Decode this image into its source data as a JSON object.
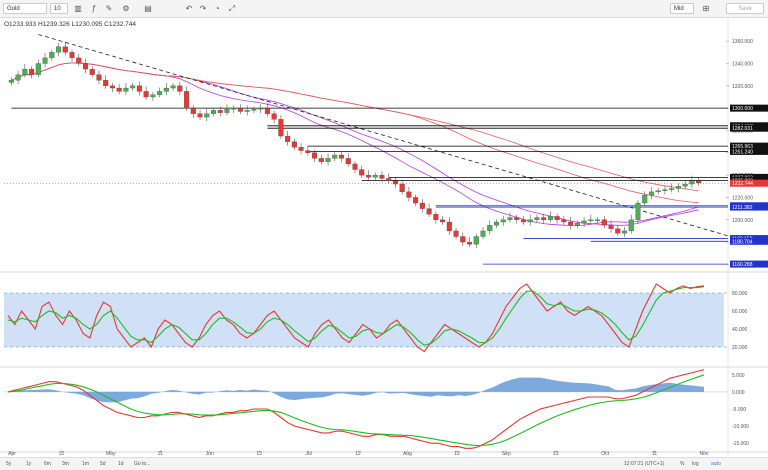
{
  "toolbar": {
    "symbol": "Gold",
    "interval": "10",
    "mode": "Mid",
    "save_label": "Save"
  },
  "ohlc": {
    "open": "O1233.933",
    "high": "H1239.326",
    "low": "L1230.095",
    "close": "C1232.744"
  },
  "bottom": {
    "ranges": [
      "5y",
      "1y",
      "6m",
      "3m",
      "1m",
      "5d",
      "1d",
      "Go to..."
    ],
    "time": "12:07:21 (UTC+1)",
    "pct": "%",
    "log": "log",
    "auto": "auto"
  },
  "colors": {
    "bull": "#4caf50",
    "bear": "#e53935",
    "purple": "#b040e0",
    "red_ma": "#e06060",
    "blue": "#2233cc",
    "fill": "#cfe0f7",
    "hist": "#5b93d6",
    "green": "#22bb22"
  },
  "chart_data": [
    {
      "type": "candlestick",
      "x_ticks": [
        "Apr",
        "12",
        "May",
        "11",
        "Jun",
        "13",
        "Jul",
        "12",
        "Aug",
        "13",
        "Sep",
        "13",
        "Oct",
        "11",
        "Nov"
      ],
      "ylim": [
        1155,
        1370
      ],
      "y_ticks": [
        1360,
        1340,
        1320,
        1300,
        1280,
        1260,
        1240,
        1220,
        1200,
        1180,
        1160
      ],
      "y_tick_labels": [
        "1360.000",
        "1340.000",
        "1320.000",
        "1300.000",
        "1280.000",
        "1260.000",
        "1240.000",
        "1220.000",
        "1200.000",
        "1180.000",
        "1160.000"
      ],
      "close": [
        1325,
        1330,
        1335,
        1330,
        1340,
        1345,
        1350,
        1355,
        1350,
        1345,
        1340,
        1335,
        1330,
        1325,
        1320,
        1318,
        1315,
        1318,
        1320,
        1315,
        1310,
        1312,
        1315,
        1318,
        1320,
        1315,
        1300,
        1295,
        1292,
        1295,
        1298,
        1296,
        1299,
        1300,
        1297,
        1298,
        1299,
        1300,
        1295,
        1290,
        1275,
        1270,
        1265,
        1262,
        1260,
        1255,
        1252,
        1255,
        1258,
        1255,
        1250,
        1245,
        1240,
        1238,
        1240,
        1237,
        1235,
        1232,
        1225,
        1220,
        1215,
        1210,
        1205,
        1200,
        1198,
        1190,
        1185,
        1180,
        1178,
        1185,
        1190,
        1195,
        1198,
        1200,
        1202,
        1200,
        1198,
        1200,
        1202,
        1200,
        1203,
        1200,
        1198,
        1195,
        1197,
        1199,
        1200,
        1200,
        1195,
        1192,
        1188,
        1190,
        1200,
        1215,
        1222,
        1225,
        1226,
        1227,
        1228,
        1230,
        1232,
        1235,
        1233
      ],
      "levels": [
        {
          "label": "1300.000",
          "value": 1300,
          "color": "#000000"
        },
        {
          "label": "1284.187",
          "value": 1284.187,
          "color": "#000000"
        },
        {
          "label": "1282.031",
          "value": 1282.031,
          "color": "#000000"
        },
        {
          "label": "1265.963",
          "value": 1265.963,
          "color": "#000000"
        },
        {
          "label": "1261.240",
          "value": 1261.24,
          "color": "#000000"
        },
        {
          "label": "1237.963",
          "value": 1237.963,
          "color": "#000000"
        },
        {
          "label": "1235.282",
          "value": 1235.282,
          "color": "#000000"
        },
        {
          "label": "1232.744",
          "value": 1232.744,
          "color": "#e53935"
        },
        {
          "label": "1212.526",
          "value": 1212.526,
          "color": "#2233cc"
        },
        {
          "label": "1211.382",
          "value": 1211.382,
          "color": "#2233cc"
        },
        {
          "label": "1183.158",
          "value": 1183.158,
          "color": "#2233cc"
        },
        {
          "label": "1180.704",
          "value": 1180.704,
          "color": "#2233cc"
        },
        {
          "label": "1160.288",
          "value": 1160.288,
          "color": "#2233cc"
        }
      ],
      "trendline_start": 1366,
      "trendline_end": 1184
    },
    {
      "type": "line",
      "ylim": [
        0,
        100
      ],
      "y_ticks": [
        80,
        60,
        40,
        20
      ],
      "y_tick_labels": [
        "80.000",
        "60.000",
        "40.000",
        "20.000"
      ],
      "band": [
        20,
        80
      ],
      "series": [
        {
          "color": "#e53935",
          "values": [
            55,
            45,
            60,
            50,
            40,
            65,
            70,
            55,
            45,
            60,
            50,
            35,
            30,
            55,
            70,
            65,
            40,
            30,
            20,
            25,
            30,
            20,
            40,
            50,
            45,
            35,
            25,
            20,
            30,
            45,
            55,
            60,
            50,
            45,
            35,
            30,
            35,
            45,
            55,
            60,
            50,
            40,
            30,
            25,
            20,
            35,
            45,
            50,
            40,
            30,
            25,
            35,
            45,
            40,
            30,
            35,
            45,
            50,
            40,
            30,
            20,
            15,
            25,
            35,
            45,
            40,
            35,
            30,
            25,
            20,
            25,
            35,
            50,
            65,
            75,
            85,
            90,
            80,
            70,
            60,
            65,
            70,
            60,
            55,
            60,
            65,
            60,
            55,
            45,
            35,
            25,
            20,
            40,
            60,
            75,
            90,
            85,
            80,
            85,
            88,
            85,
            87,
            88
          ]
        },
        {
          "color": "#22bb22",
          "values": [
            50,
            48,
            52,
            50,
            48,
            55,
            60,
            58,
            52,
            55,
            52,
            45,
            40,
            45,
            55,
            60,
            52,
            42,
            32,
            28,
            28,
            25,
            32,
            40,
            45,
            42,
            35,
            28,
            28,
            35,
            45,
            52,
            52,
            48,
            42,
            36,
            35,
            40,
            48,
            52,
            50,
            45,
            38,
            32,
            26,
            30,
            38,
            44,
            42,
            36,
            30,
            32,
            38,
            40,
            36,
            35,
            40,
            45,
            42,
            36,
            28,
            22,
            24,
            30,
            38,
            40,
            38,
            34,
            30,
            25,
            25,
            30,
            40,
            52,
            63,
            74,
            82,
            82,
            76,
            68,
            66,
            68,
            64,
            60,
            60,
            62,
            61,
            58,
            52,
            45,
            36,
            28,
            32,
            44,
            58,
            72,
            80,
            82,
            84,
            86,
            86,
            86,
            87
          ]
        }
      ]
    },
    {
      "type": "line",
      "ylim": [
        -17,
        7
      ],
      "y_ticks": [
        5,
        0,
        -5,
        -10,
        -15
      ],
      "y_tick_labels": [
        "5.000",
        "0.000",
        "-5.000",
        "-10.000",
        "-15.000"
      ],
      "series": [
        {
          "color": "#e53935",
          "values": [
            0,
            0.5,
            1,
            1.5,
            2,
            2.5,
            3,
            3,
            2.5,
            2,
            1.5,
            0.5,
            -1,
            -2.5,
            -4,
            -5,
            -6,
            -6.5,
            -7,
            -7.5,
            -7.5,
            -7,
            -7,
            -6.5,
            -6,
            -6,
            -6.5,
            -7,
            -7.5,
            -7,
            -7,
            -6.5,
            -6,
            -6,
            -5.5,
            -5.5,
            -5,
            -5,
            -5,
            -6,
            -7.5,
            -9,
            -10,
            -10.5,
            -11,
            -11.5,
            -12,
            -12,
            -11.5,
            -11.5,
            -12,
            -12.5,
            -13,
            -13,
            -12.5,
            -12.5,
            -13,
            -13,
            -13,
            -13.5,
            -14,
            -14.5,
            -15,
            -15,
            -15.5,
            -16,
            -16,
            -16.5,
            -16.5,
            -16,
            -15,
            -14,
            -12.5,
            -11,
            -9.5,
            -8,
            -7,
            -6,
            -5,
            -4.5,
            -4,
            -3.5,
            -3,
            -2.5,
            -2,
            -1.5,
            -1.5,
            -1.5,
            -1.5,
            -2,
            -2,
            -1.5,
            -1,
            0,
            1,
            2,
            3,
            4,
            4.5,
            5,
            5.5,
            6,
            6.5
          ]
        },
        {
          "color": "#22bb22",
          "values": [
            0,
            0.2,
            0.5,
            1,
            1.4,
            1.8,
            2.2,
            2.5,
            2.5,
            2.3,
            2,
            1.5,
            0.8,
            0,
            -1,
            -2,
            -3,
            -4,
            -5,
            -5.7,
            -6.2,
            -6.5,
            -6.7,
            -6.7,
            -6.6,
            -6.4,
            -6.4,
            -6.5,
            -6.7,
            -6.8,
            -6.8,
            -6.7,
            -6.5,
            -6.3,
            -6.1,
            -5.9,
            -5.7,
            -5.5,
            -5.4,
            -5.6,
            -6,
            -6.8,
            -7.6,
            -8.4,
            -9.1,
            -9.8,
            -10.4,
            -10.8,
            -11,
            -11.1,
            -11.3,
            -11.6,
            -11.9,
            -12.2,
            -12.3,
            -12.4,
            -12.5,
            -12.6,
            -12.7,
            -12.8,
            -13,
            -13.3,
            -13.6,
            -14,
            -14.3,
            -14.7,
            -15,
            -15.3,
            -15.6,
            -15.7,
            -15.6,
            -15.3,
            -14.8,
            -14.1,
            -13.2,
            -12.2,
            -11.2,
            -10.2,
            -9.2,
            -8.3,
            -7.4,
            -6.6,
            -5.9,
            -5.2,
            -4.6,
            -4,
            -3.5,
            -3.1,
            -2.8,
            -2.6,
            -2.5,
            -2.3,
            -2,
            -1.6,
            -1,
            -0.3,
            0.5,
            1.3,
            2.1,
            2.9,
            3.6,
            4.3,
            5
          ]
        }
      ],
      "histogram": [
        0,
        0.3,
        0.5,
        0.5,
        0.6,
        0.7,
        0.8,
        0.5,
        0,
        -0.3,
        -0.5,
        -1,
        -1.8,
        -2.5,
        -3,
        -3,
        -3,
        -2.5,
        -2,
        -1.8,
        -1.3,
        -0.5,
        -0.3,
        0.2,
        0.6,
        0.4,
        -0.1,
        -0.5,
        -0.8,
        -0.2,
        -0.2,
        0.2,
        0.5,
        0.3,
        0.6,
        0.4,
        0.7,
        0.5,
        0.4,
        -0.4,
        -1.5,
        -2.2,
        -2.4,
        -2.1,
        -1.9,
        -1.7,
        -1.6,
        -1.2,
        -0.5,
        -0.4,
        -0.7,
        -0.9,
        -1.1,
        -0.8,
        -0.2,
        -0.1,
        -0.5,
        -0.4,
        -0.3,
        -0.7,
        -1,
        -1.2,
        -1.4,
        -1,
        -1.2,
        -1.3,
        -1,
        -1.2,
        -0.9,
        -0.3,
        0.6,
        1.3,
        2.3,
        3.1,
        3.7,
        4.2,
        4.2,
        4.2,
        4.2,
        3.8,
        3.4,
        3.1,
        2.9,
        2.7,
        2.6,
        2.5,
        2.3,
        1.9,
        1.6,
        0.6,
        0.5,
        0.8,
        1,
        1.6,
        2,
        2.3,
        2.5,
        2.7,
        2.4,
        2.1,
        1.9,
        1.7,
        1.5
      ]
    }
  ]
}
